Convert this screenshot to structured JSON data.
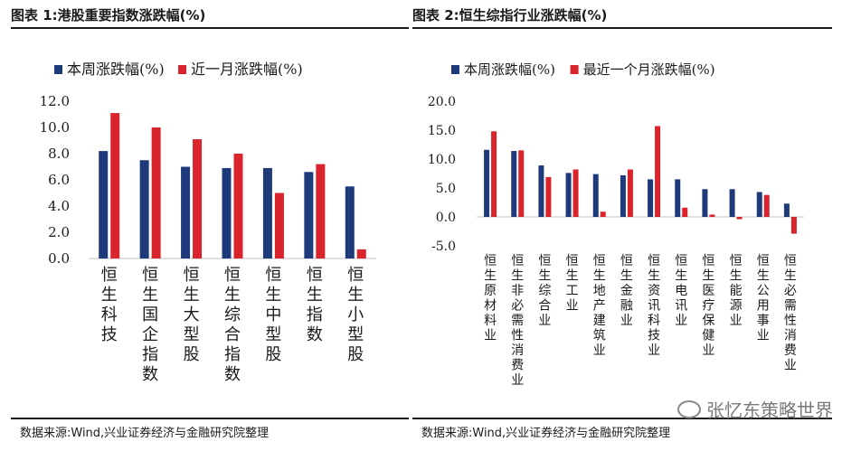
{
  "colors": {
    "series1": "#1f3a7a",
    "series2": "#d9232d",
    "axis": "#bfbfbf",
    "text": "#1a1a1a"
  },
  "left": {
    "title": "图表 1:港股重要指数涨跌幅(%)",
    "source": "数据来源:Wind,兴业证券经济与金融研究院整理"
  },
  "right": {
    "title": "图表 2:恒生综指行业涨跌幅(%)",
    "source": "数据来源:Wind,兴业证券经济与金融研究院整理"
  },
  "watermark": "张忆东策略世界",
  "chart_data": [
    {
      "type": "bar",
      "title": "港股重要指数涨跌幅(%)",
      "categories": [
        "恒生科技",
        "恒生国企指数",
        "恒生大型股",
        "恒生综合指数",
        "恒生中型股",
        "恒生指数",
        "恒生小型股"
      ],
      "series": [
        {
          "name": "本周涨跌幅(%)",
          "values": [
            8.2,
            7.5,
            7.0,
            6.9,
            6.9,
            6.6,
            5.5
          ]
        },
        {
          "name": "近一月涨跌幅(%)",
          "values": [
            11.1,
            10.0,
            9.1,
            8.0,
            5.0,
            7.2,
            0.7
          ]
        }
      ],
      "ylim": [
        0,
        12
      ],
      "yticks": [
        0,
        2,
        4,
        6,
        8,
        10,
        12
      ],
      "ytick_labels": [
        "0.0",
        "2.0",
        "4.0",
        "6.0",
        "8.0",
        "10.0",
        "12.0"
      ],
      "legend_position": "top",
      "grid": false
    },
    {
      "type": "bar",
      "title": "恒生综指行业涨跌幅(%)",
      "categories": [
        "恒生原材料业",
        "恒生非必需性消费业",
        "恒生综合业",
        "恒生工业",
        "恒生地产建筑业",
        "恒生金融业",
        "恒生资讯科技业",
        "恒生电讯业",
        "恒生医疗保健业",
        "恒生能源业",
        "恒生公用事业",
        "恒生必需性消费业"
      ],
      "series": [
        {
          "name": "本周涨跌幅(%)",
          "values": [
            11.6,
            11.4,
            8.9,
            7.6,
            7.4,
            7.2,
            6.5,
            6.5,
            4.8,
            4.8,
            4.3,
            2.3
          ]
        },
        {
          "name": "最近一个月涨跌幅(%)",
          "values": [
            14.8,
            11.5,
            6.9,
            8.2,
            0.9,
            8.2,
            15.7,
            1.6,
            0.4,
            -0.4,
            3.8,
            -2.9
          ]
        }
      ],
      "ylim": [
        -5,
        20
      ],
      "yticks": [
        -5,
        0,
        5,
        10,
        15,
        20
      ],
      "ytick_labels": [
        "-5.0",
        "0.0",
        "5.0",
        "10.0",
        "15.0",
        "20.0"
      ],
      "legend_position": "top",
      "grid": false
    }
  ]
}
